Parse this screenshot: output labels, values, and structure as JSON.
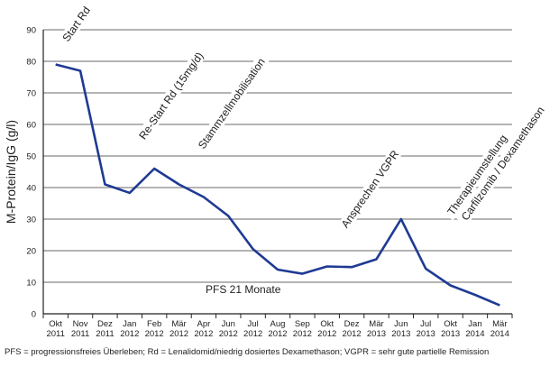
{
  "chart_data": {
    "type": "line",
    "title": "",
    "xlabel": "",
    "ylabel": "M-Protein/IgG (g/l)",
    "ylim": [
      0,
      90
    ],
    "yticks": [
      0,
      10,
      20,
      30,
      40,
      50,
      60,
      70,
      80,
      90
    ],
    "grid": true,
    "categories": [
      [
        "Okt",
        "2011"
      ],
      [
        "Nov",
        "2011"
      ],
      [
        "Dez",
        "2011"
      ],
      [
        "Jan",
        "2012"
      ],
      [
        "Feb",
        "2012"
      ],
      [
        "Mär",
        "2012"
      ],
      [
        "Apr",
        "2012"
      ],
      [
        "Jun",
        "2012"
      ],
      [
        "Jul",
        "2012"
      ],
      [
        "Aug",
        "2012"
      ],
      [
        "Sep",
        "2012"
      ],
      [
        "Okt",
        "2012"
      ],
      [
        "Dez",
        "2012"
      ],
      [
        "Mär",
        "2013"
      ],
      [
        "Jun",
        "2013"
      ],
      [
        "Jul",
        "2013"
      ],
      [
        "Okt",
        "2013"
      ],
      [
        "Jan",
        "2014"
      ],
      [
        "Mär",
        "2014"
      ]
    ],
    "series": [
      {
        "name": "M-Protein/IgG",
        "color": "#1f3a93",
        "values": [
          79,
          77,
          41,
          38.3,
          46,
          41,
          37,
          31,
          20.5,
          14,
          12.7,
          15,
          14.8,
          17.3,
          30,
          14.3,
          9,
          6,
          2.7
        ]
      }
    ],
    "annotations": [
      {
        "text": "Start Rd",
        "at": 0.5,
        "y": 86
      },
      {
        "text": "Re-Start Rd (15mg/d)",
        "at": 3.6,
        "y": 55
      },
      {
        "text": "Stammzellmobilisation",
        "at": 6.0,
        "y": 52
      },
      {
        "text": "Ansprechen VGPR",
        "at": 11.8,
        "y": 27
      },
      {
        "text": "Therapieumstellung",
        "at": 16.1,
        "y": 31
      },
      {
        "text": "Carfilzomib / Dexamethason",
        "at": 16.1,
        "y": 26
      }
    ],
    "inner_label": "PFS 21 Monate"
  },
  "footnote": "PFS = progressionsfreies Überleben; Rd = Lenalidomid/niedrig dosiertes Dexamethason; VGPR = sehr gute partielle Remission"
}
